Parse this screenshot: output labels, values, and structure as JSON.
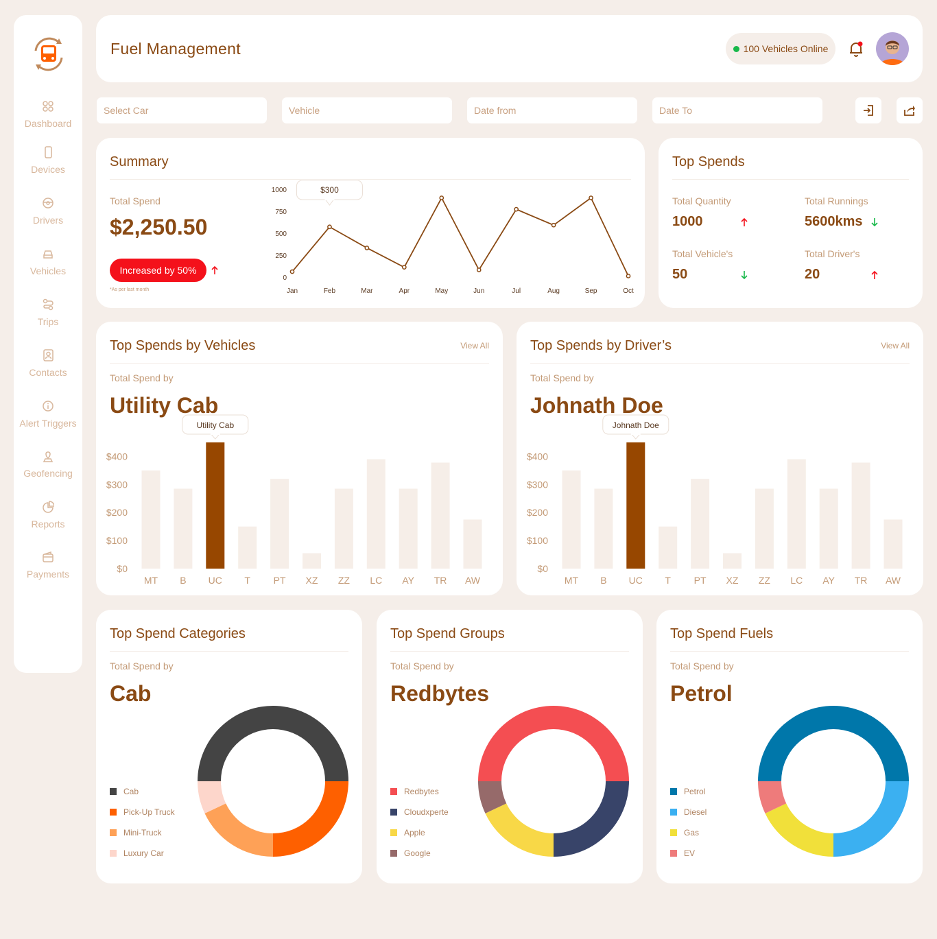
{
  "sidebar": {
    "items": [
      {
        "label": "Dashboard",
        "icon": "grid-icon"
      },
      {
        "label": "Devices",
        "icon": "phone-icon"
      },
      {
        "label": "Drivers",
        "icon": "steering-wheel-icon"
      },
      {
        "label": "Vehicles",
        "icon": "car-icon"
      },
      {
        "label": "Trips",
        "icon": "route-icon"
      },
      {
        "label": "Contacts",
        "icon": "contact-book-icon"
      },
      {
        "label": "Alert Triggers",
        "icon": "info-icon"
      },
      {
        "label": "Geofencing",
        "icon": "map-pin-icon"
      },
      {
        "label": "Reports",
        "icon": "pie-chart-icon"
      },
      {
        "label": "Payments",
        "icon": "wallet-icon"
      }
    ]
  },
  "header": {
    "title": "Fuel Management",
    "online_label": "100 Vehicles Online"
  },
  "filters": {
    "select_car": "Select Car",
    "vehicle": "Vehicle",
    "date_from": "Date from",
    "date_to": "Date To"
  },
  "summary": {
    "title": "Summary",
    "total_label": "Total Spend",
    "total_value": "$2,250.50",
    "badge": "Increased by 50%",
    "footnote": "*As per last month",
    "tooltip": "$300"
  },
  "top_spends": {
    "title": "Top Spends",
    "stats": [
      {
        "label": "Total Quantity",
        "value": "1000",
        "trend": "up"
      },
      {
        "label": "Total Runnings",
        "value": "5600kms",
        "trend": "down"
      },
      {
        "label": "Total Vehicle's",
        "value": "50",
        "trend": "down"
      },
      {
        "label": "Total Driver's",
        "value": "20",
        "trend": "up"
      }
    ]
  },
  "vehicles": {
    "title": "Top Spends by Vehicles",
    "view_all": "View All",
    "sub": "Total Spend by",
    "value": "Utility Cab",
    "tooltip": "Utility Cab"
  },
  "drivers": {
    "title": "Top Spends by Driver’s",
    "view_all": "View All",
    "sub": "Total Spend by",
    "value": "Johnath Doe",
    "tooltip": "Johnath Doe"
  },
  "categories": {
    "title": "Top Spend Categories",
    "sub": "Total Spend by",
    "value": "Cab"
  },
  "groups": {
    "title": "Top Spend Groups",
    "sub": "Total Spend by",
    "value": "Redbytes"
  },
  "fuels": {
    "title": "Top Spend Fuels",
    "sub": "Total Spend by",
    "value": "Petrol"
  },
  "colors": {
    "brand": "#8a4a14",
    "bar_highlight": "#974700",
    "bar_muted": "#f6eee8",
    "red": "#f4111b",
    "green": "#18b84a"
  },
  "chart_data": [
    {
      "type": "line",
      "x": [
        "Jan",
        "Feb",
        "Mar",
        "Apr",
        "May",
        "Jun",
        "Jul",
        "Aug",
        "Sep",
        "Oct"
      ],
      "y": [
        70,
        580,
        340,
        120,
        910,
        90,
        780,
        600,
        910,
        20
      ],
      "ylim": [
        0,
        1000
      ],
      "yticks": [
        "0",
        "250",
        "500",
        "750",
        "1000"
      ]
    },
    {
      "type": "bar",
      "categories": [
        "MT",
        "B",
        "UC",
        "T",
        "PT",
        "XZ",
        "ZZ",
        "LC",
        "AY",
        "TR",
        "AW"
      ],
      "values": [
        350,
        285,
        450,
        150,
        320,
        55,
        285,
        390,
        285,
        378,
        175
      ],
      "highlight": "UC",
      "yticks": [
        "$0",
        "$100",
        "$200",
        "$300",
        "$400"
      ],
      "ylim": [
        0,
        450
      ]
    },
    {
      "type": "bar",
      "categories": [
        "MT",
        "B",
        "UC",
        "T",
        "PT",
        "XZ",
        "ZZ",
        "LC",
        "AY",
        "TR",
        "AW"
      ],
      "values": [
        350,
        285,
        450,
        150,
        320,
        55,
        285,
        390,
        285,
        378,
        175
      ],
      "highlight": "UC",
      "yticks": [
        "$0",
        "$100",
        "$200",
        "$300",
        "$400"
      ],
      "ylim": [
        0,
        450
      ]
    },
    {
      "type": "pie",
      "labels": [
        "Cab",
        "Pick-Up Truck",
        "Mini-Truck",
        "Luxury Car"
      ],
      "values": [
        50,
        25,
        18,
        7
      ],
      "colors": [
        "#444444",
        "#fe6000",
        "#fea157",
        "#fdd6cb"
      ]
    },
    {
      "type": "pie",
      "labels": [
        "Redbytes",
        "Cloudxperte",
        "Apple",
        "Google"
      ],
      "values": [
        50,
        25,
        18,
        7
      ],
      "colors": [
        "#f44e52",
        "#384469",
        "#f8d847",
        "#966a6a"
      ]
    },
    {
      "type": "pie",
      "labels": [
        "Petrol",
        "Diesel",
        "Gas",
        "EV"
      ],
      "values": [
        50,
        25,
        18,
        7
      ],
      "colors": [
        "#0077aa",
        "#3bb0f1",
        "#f1e03a",
        "#ee7b7b"
      ]
    }
  ]
}
